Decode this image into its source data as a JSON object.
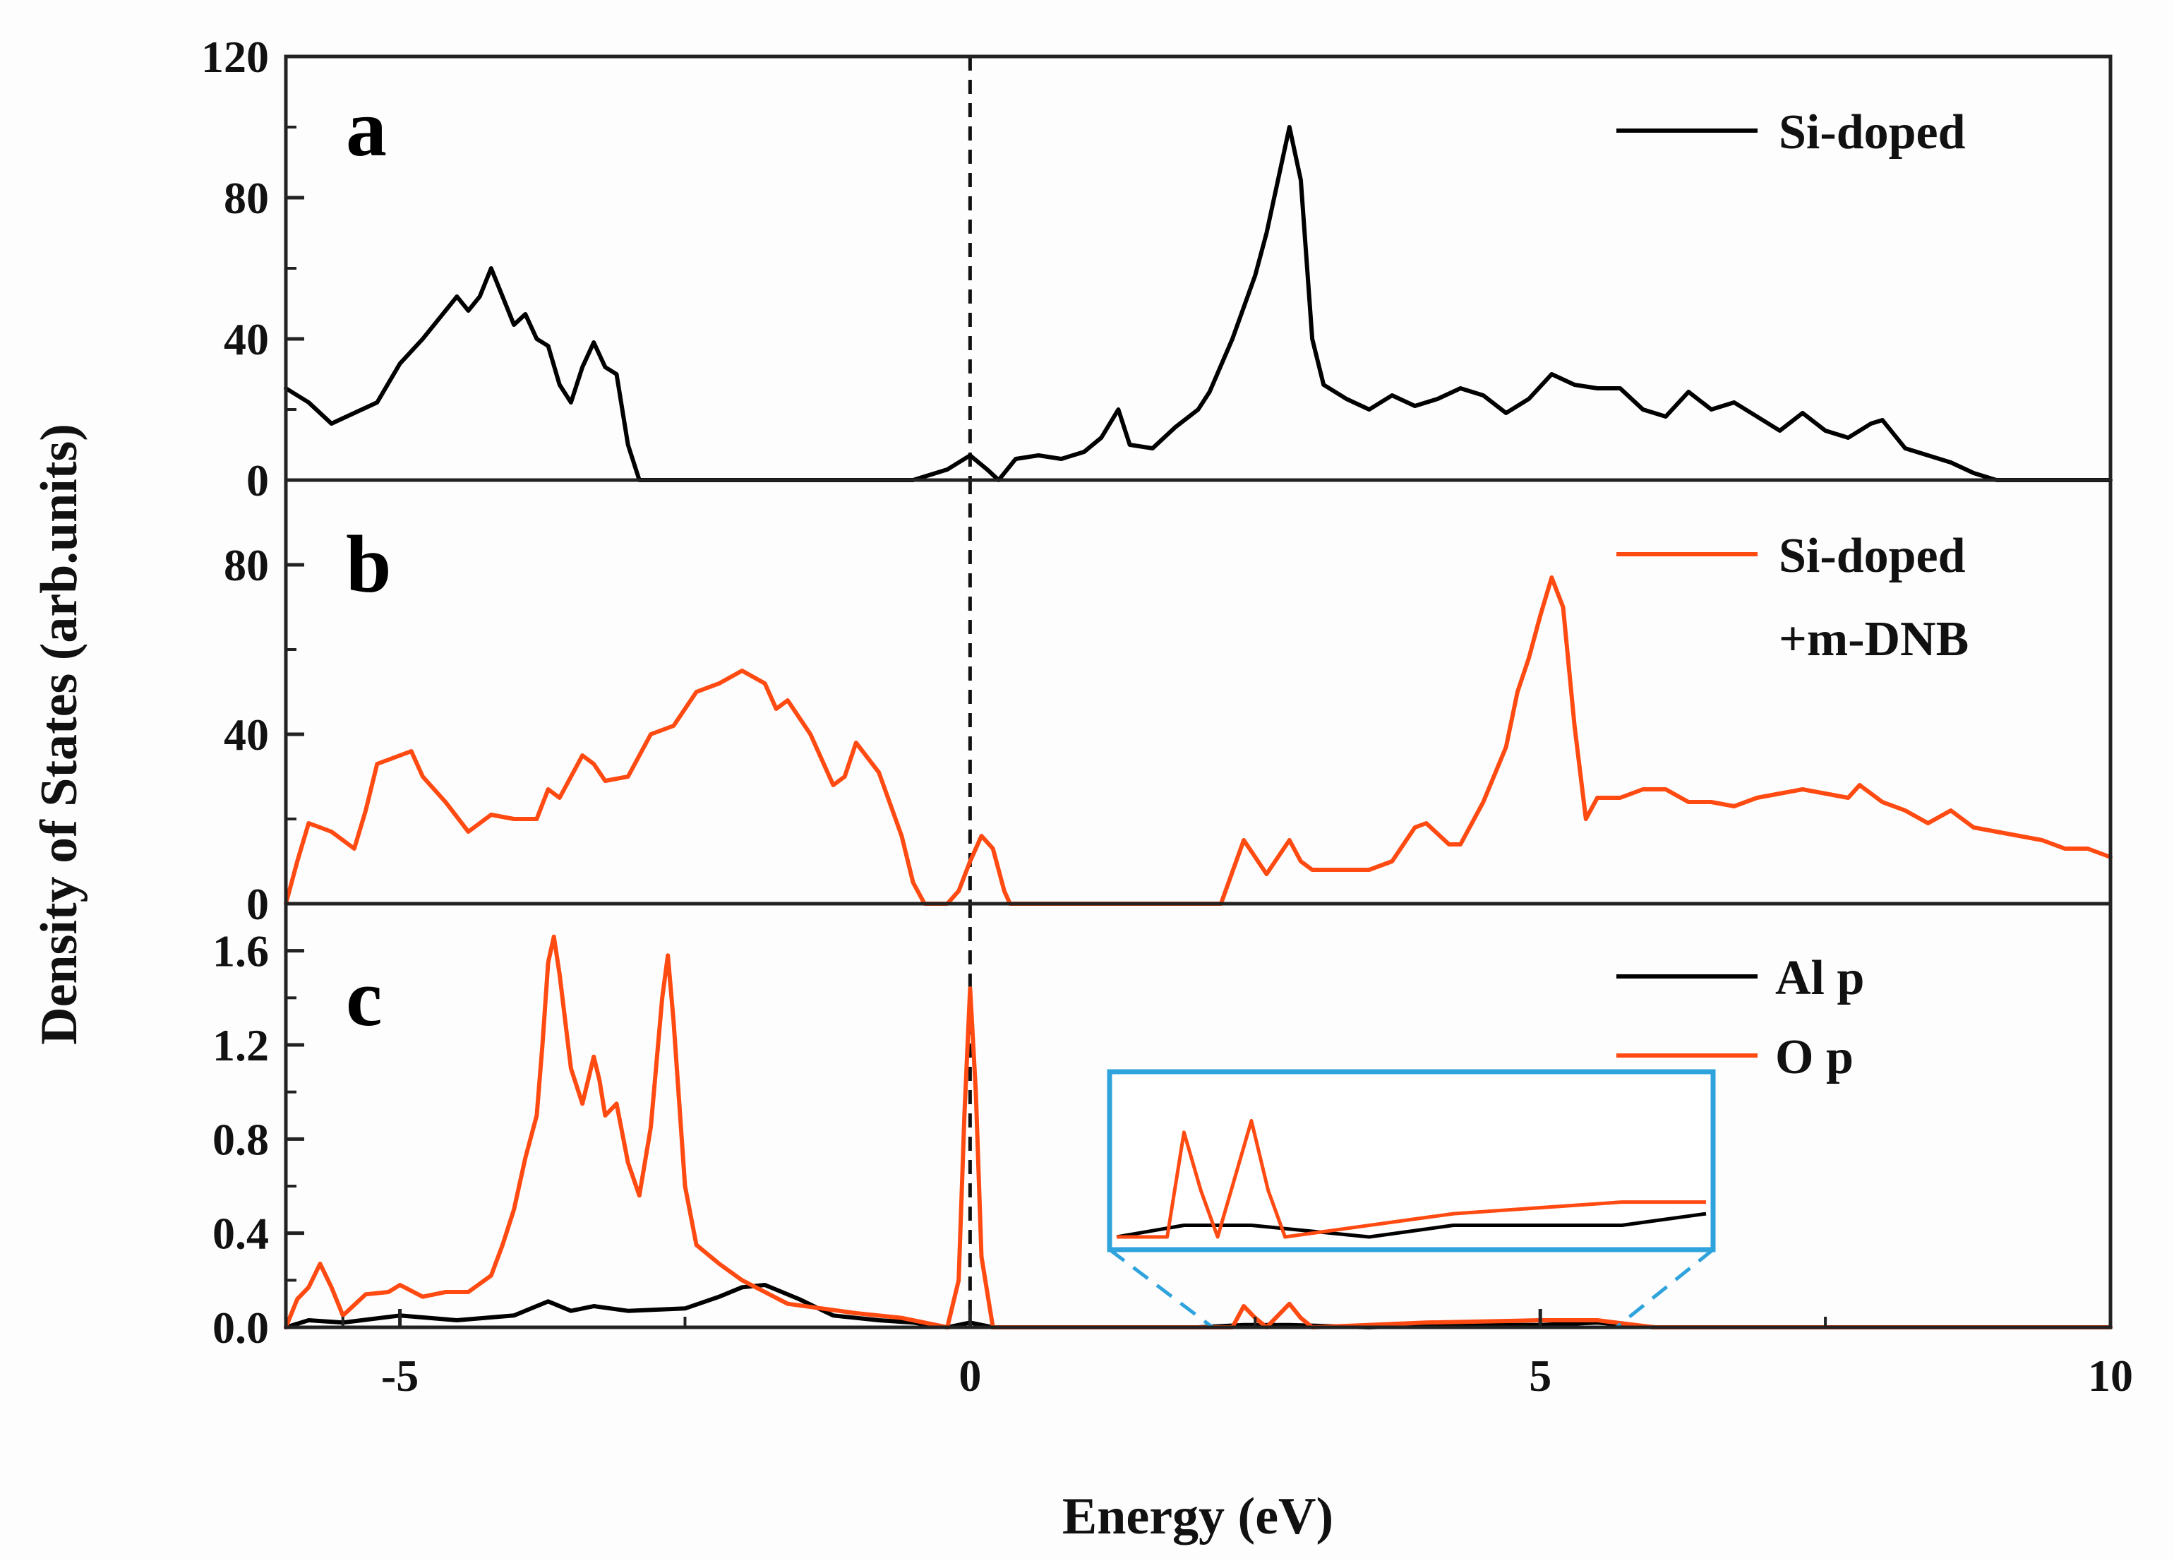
{
  "chart_data": [
    {
      "panel": "a",
      "type": "line",
      "xlabel": "Energy (eV)",
      "ylabel": "Density of States (arb.units)",
      "xlim": [
        -6,
        10
      ],
      "ylim": [
        0,
        120
      ],
      "yticks": [
        "0",
        "40",
        "80",
        "120"
      ],
      "fermi_level": 0,
      "series": [
        {
          "name": "Si-doped",
          "color": "#000000",
          "points": [
            [
              -6,
              26
            ],
            [
              -5.8,
              22
            ],
            [
              -5.6,
              16
            ],
            [
              -5.4,
              19
            ],
            [
              -5.2,
              22
            ],
            [
              -5.0,
              33
            ],
            [
              -4.8,
              40
            ],
            [
              -4.6,
              48
            ],
            [
              -4.5,
              52
            ],
            [
              -4.4,
              48
            ],
            [
              -4.3,
              52
            ],
            [
              -4.2,
              60
            ],
            [
              -4.1,
              52
            ],
            [
              -4.0,
              44
            ],
            [
              -3.9,
              47
            ],
            [
              -3.8,
              40
            ],
            [
              -3.7,
              38
            ],
            [
              -3.6,
              27
            ],
            [
              -3.5,
              22
            ],
            [
              -3.4,
              32
            ],
            [
              -3.3,
              39
            ],
            [
              -3.2,
              32
            ],
            [
              -3.1,
              30
            ],
            [
              -3.0,
              10
            ],
            [
              -2.9,
              0
            ],
            [
              -2.0,
              0
            ],
            [
              -0.5,
              0
            ],
            [
              -0.2,
              3
            ],
            [
              0.0,
              7
            ],
            [
              0.15,
              3
            ],
            [
              0.25,
              0
            ],
            [
              0.4,
              6
            ],
            [
              0.6,
              7
            ],
            [
              0.8,
              6
            ],
            [
              1.0,
              8
            ],
            [
              1.15,
              12
            ],
            [
              1.3,
              20
            ],
            [
              1.4,
              10
            ],
            [
              1.6,
              9
            ],
            [
              1.8,
              15
            ],
            [
              2.0,
              20
            ],
            [
              2.1,
              25
            ],
            [
              2.3,
              40
            ],
            [
              2.5,
              58
            ],
            [
              2.6,
              70
            ],
            [
              2.7,
              85
            ],
            [
              2.8,
              100
            ],
            [
              2.9,
              85
            ],
            [
              3.0,
              40
            ],
            [
              3.1,
              27
            ],
            [
              3.3,
              23
            ],
            [
              3.5,
              20
            ],
            [
              3.7,
              24
            ],
            [
              3.9,
              21
            ],
            [
              4.1,
              23
            ],
            [
              4.3,
              26
            ],
            [
              4.5,
              24
            ],
            [
              4.7,
              19
            ],
            [
              4.9,
              23
            ],
            [
              5.1,
              30
            ],
            [
              5.3,
              27
            ],
            [
              5.5,
              26
            ],
            [
              5.7,
              26
            ],
            [
              5.9,
              20
            ],
            [
              6.1,
              18
            ],
            [
              6.3,
              25
            ],
            [
              6.5,
              20
            ],
            [
              6.7,
              22
            ],
            [
              6.9,
              18
            ],
            [
              7.1,
              14
            ],
            [
              7.3,
              19
            ],
            [
              7.5,
              14
            ],
            [
              7.7,
              12
            ],
            [
              7.9,
              16
            ],
            [
              8.0,
              17
            ],
            [
              8.2,
              9
            ],
            [
              8.4,
              7
            ],
            [
              8.6,
              5
            ],
            [
              8.8,
              2
            ],
            [
              9.0,
              0
            ],
            [
              10,
              0
            ]
          ]
        }
      ]
    },
    {
      "panel": "b",
      "type": "line",
      "xlim": [
        -6,
        10
      ],
      "ylim": [
        0,
        100
      ],
      "yticks": [
        "0",
        "40",
        "80"
      ],
      "fermi_level": 0,
      "series": [
        {
          "name": "Si-doped +m-DNB",
          "name_lines": [
            "Si-doped",
            "+m-DNB"
          ],
          "color": "#ff4a12",
          "points": [
            [
              -6,
              0
            ],
            [
              -5.9,
              10
            ],
            [
              -5.8,
              19
            ],
            [
              -5.6,
              17
            ],
            [
              -5.4,
              13
            ],
            [
              -5.3,
              22
            ],
            [
              -5.2,
              33
            ],
            [
              -5.0,
              35
            ],
            [
              -4.9,
              36
            ],
            [
              -4.8,
              30
            ],
            [
              -4.6,
              24
            ],
            [
              -4.4,
              17
            ],
            [
              -4.2,
              21
            ],
            [
              -4.0,
              20
            ],
            [
              -3.8,
              20
            ],
            [
              -3.7,
              27
            ],
            [
              -3.6,
              25
            ],
            [
              -3.4,
              35
            ],
            [
              -3.3,
              33
            ],
            [
              -3.2,
              29
            ],
            [
              -3.0,
              30
            ],
            [
              -2.8,
              40
            ],
            [
              -2.6,
              42
            ],
            [
              -2.4,
              50
            ],
            [
              -2.2,
              52
            ],
            [
              -2.0,
              55
            ],
            [
              -1.8,
              52
            ],
            [
              -1.7,
              46
            ],
            [
              -1.6,
              48
            ],
            [
              -1.4,
              40
            ],
            [
              -1.2,
              28
            ],
            [
              -1.1,
              30
            ],
            [
              -1.0,
              38
            ],
            [
              -0.8,
              31
            ],
            [
              -0.6,
              16
            ],
            [
              -0.5,
              5
            ],
            [
              -0.4,
              0
            ],
            [
              -0.2,
              0
            ],
            [
              -0.1,
              3
            ],
            [
              0.0,
              10
            ],
            [
              0.1,
              16
            ],
            [
              0.2,
              13
            ],
            [
              0.3,
              3
            ],
            [
              0.35,
              0
            ],
            [
              1.0,
              0
            ],
            [
              2.2,
              0
            ],
            [
              2.4,
              15
            ],
            [
              2.5,
              11
            ],
            [
              2.6,
              7
            ],
            [
              2.8,
              15
            ],
            [
              2.9,
              10
            ],
            [
              3.0,
              8
            ],
            [
              3.2,
              8
            ],
            [
              3.5,
              8
            ],
            [
              3.7,
              10
            ],
            [
              3.9,
              18
            ],
            [
              4.0,
              19
            ],
            [
              4.2,
              14
            ],
            [
              4.3,
              14
            ],
            [
              4.5,
              24
            ],
            [
              4.7,
              37
            ],
            [
              4.8,
              50
            ],
            [
              4.9,
              58
            ],
            [
              5.0,
              68
            ],
            [
              5.1,
              77
            ],
            [
              5.2,
              70
            ],
            [
              5.3,
              42
            ],
            [
              5.4,
              20
            ],
            [
              5.5,
              25
            ],
            [
              5.7,
              25
            ],
            [
              5.9,
              27
            ],
            [
              6.1,
              27
            ],
            [
              6.3,
              24
            ],
            [
              6.5,
              24
            ],
            [
              6.7,
              23
            ],
            [
              6.9,
              25
            ],
            [
              7.1,
              26
            ],
            [
              7.3,
              27
            ],
            [
              7.5,
              26
            ],
            [
              7.7,
              25
            ],
            [
              7.8,
              28
            ],
            [
              8.0,
              24
            ],
            [
              8.2,
              22
            ],
            [
              8.4,
              19
            ],
            [
              8.6,
              22
            ],
            [
              8.8,
              18
            ],
            [
              9.0,
              17
            ],
            [
              9.2,
              16
            ],
            [
              9.4,
              15
            ],
            [
              9.6,
              13
            ],
            [
              9.8,
              13
            ],
            [
              10,
              11
            ]
          ]
        }
      ]
    },
    {
      "panel": "c",
      "type": "line",
      "xlim": [
        -6,
        10
      ],
      "ylim": [
        0,
        1.8
      ],
      "yticks": [
        "0.0",
        "0.4",
        "0.8",
        "1.2",
        "1.6"
      ],
      "xticks": [
        "-5",
        "0",
        "5",
        "10"
      ],
      "fermi_level": 0,
      "inset": "magnified view of Energy 2 to 5.5 eV",
      "series": [
        {
          "name": "Al p",
          "color": "#000000",
          "points": [
            [
              -6,
              0.0
            ],
            [
              -5.8,
              0.03
            ],
            [
              -5.5,
              0.02
            ],
            [
              -5.0,
              0.05
            ],
            [
              -4.5,
              0.03
            ],
            [
              -4.0,
              0.05
            ],
            [
              -3.7,
              0.11
            ],
            [
              -3.5,
              0.07
            ],
            [
              -3.3,
              0.09
            ],
            [
              -3.0,
              0.07
            ],
            [
              -2.5,
              0.08
            ],
            [
              -2.2,
              0.13
            ],
            [
              -2.0,
              0.17
            ],
            [
              -1.8,
              0.18
            ],
            [
              -1.5,
              0.12
            ],
            [
              -1.2,
              0.05
            ],
            [
              -0.8,
              0.03
            ],
            [
              -0.5,
              0.02
            ],
            [
              -0.2,
              0.0
            ],
            [
              0.0,
              0.02
            ],
            [
              0.2,
              0.0
            ],
            [
              1.0,
              0.0
            ],
            [
              2.0,
              0.0
            ],
            [
              2.4,
              0.01
            ],
            [
              2.8,
              0.01
            ],
            [
              3.5,
              0.0
            ],
            [
              4.0,
              0.01
            ],
            [
              5.0,
              0.01
            ],
            [
              5.5,
              0.02
            ],
            [
              6.0,
              0.0
            ],
            [
              10,
              0.0
            ]
          ]
        },
        {
          "name": "O p",
          "color": "#ff4a12",
          "points": [
            [
              -6,
              0.0
            ],
            [
              -5.9,
              0.12
            ],
            [
              -5.8,
              0.17
            ],
            [
              -5.7,
              0.27
            ],
            [
              -5.6,
              0.17
            ],
            [
              -5.5,
              0.05
            ],
            [
              -5.3,
              0.14
            ],
            [
              -5.1,
              0.15
            ],
            [
              -5.0,
              0.18
            ],
            [
              -4.8,
              0.13
            ],
            [
              -4.6,
              0.15
            ],
            [
              -4.4,
              0.15
            ],
            [
              -4.2,
              0.22
            ],
            [
              -4.1,
              0.35
            ],
            [
              -4.0,
              0.5
            ],
            [
              -3.9,
              0.72
            ],
            [
              -3.8,
              0.9
            ],
            [
              -3.75,
              1.2
            ],
            [
              -3.7,
              1.55
            ],
            [
              -3.65,
              1.66
            ],
            [
              -3.6,
              1.5
            ],
            [
              -3.5,
              1.1
            ],
            [
              -3.4,
              0.95
            ],
            [
              -3.3,
              1.15
            ],
            [
              -3.25,
              1.05
            ],
            [
              -3.2,
              0.9
            ],
            [
              -3.1,
              0.95
            ],
            [
              -3.0,
              0.7
            ],
            [
              -2.9,
              0.56
            ],
            [
              -2.8,
              0.85
            ],
            [
              -2.7,
              1.4
            ],
            [
              -2.65,
              1.58
            ],
            [
              -2.6,
              1.3
            ],
            [
              -2.5,
              0.6
            ],
            [
              -2.4,
              0.35
            ],
            [
              -2.2,
              0.27
            ],
            [
              -2.0,
              0.2
            ],
            [
              -1.8,
              0.15
            ],
            [
              -1.6,
              0.1
            ],
            [
              -1.3,
              0.08
            ],
            [
              -1.0,
              0.06
            ],
            [
              -0.6,
              0.04
            ],
            [
              -0.2,
              0.0
            ],
            [
              -0.1,
              0.2
            ],
            [
              -0.05,
              0.9
            ],
            [
              0.0,
              1.44
            ],
            [
              0.05,
              1.0
            ],
            [
              0.1,
              0.3
            ],
            [
              0.2,
              0.0
            ],
            [
              1.0,
              0.0
            ],
            [
              2.0,
              0.0
            ],
            [
              2.3,
              0.0
            ],
            [
              2.4,
              0.09
            ],
            [
              2.5,
              0.04
            ],
            [
              2.6,
              0.0
            ],
            [
              2.8,
              0.1
            ],
            [
              2.9,
              0.04
            ],
            [
              3.0,
              0.0
            ],
            [
              4.0,
              0.02
            ],
            [
              5.0,
              0.03
            ],
            [
              5.5,
              0.03
            ],
            [
              6.0,
              0.0
            ],
            [
              10,
              0.0
            ]
          ]
        }
      ]
    }
  ]
}
